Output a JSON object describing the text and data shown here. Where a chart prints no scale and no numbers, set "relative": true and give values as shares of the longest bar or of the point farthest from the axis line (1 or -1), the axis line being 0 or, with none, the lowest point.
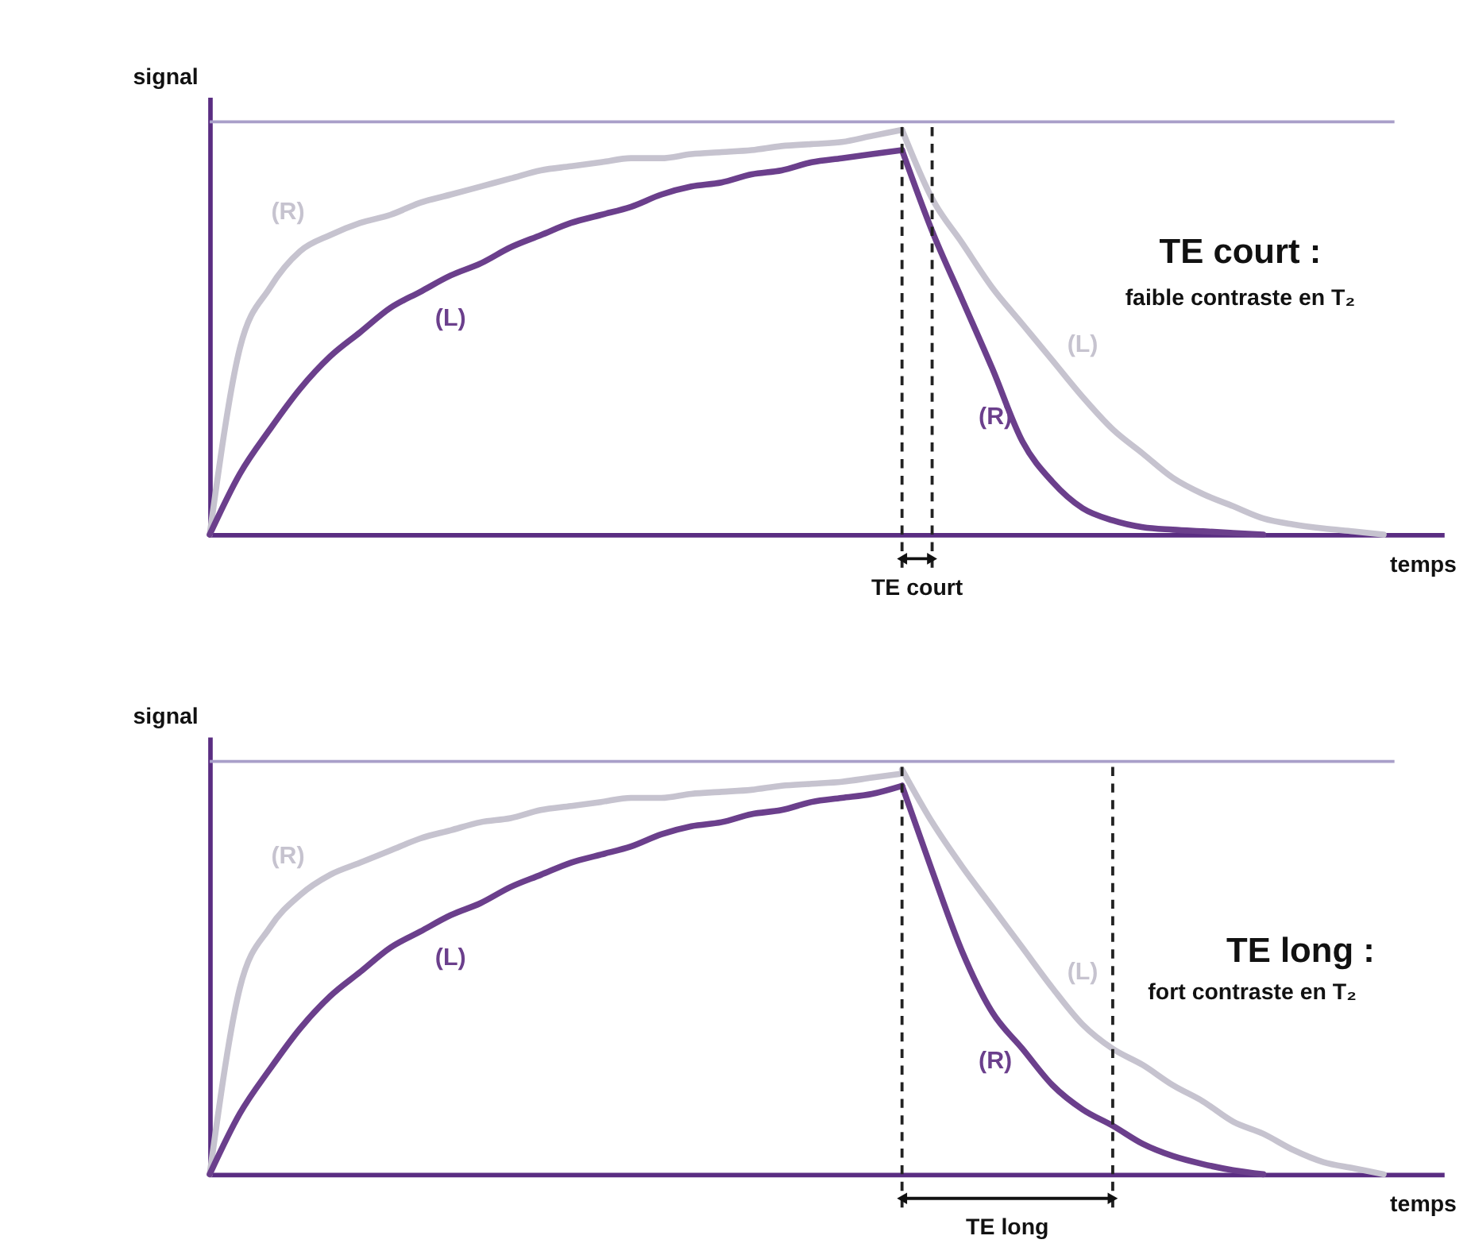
{
  "chart_data": [
    {
      "type": "line",
      "relative": true,
      "ylabel": "signal",
      "xlabel": "temps",
      "tick_labels": false,
      "grid": false,
      "legend": false,
      "marker": "none",
      "line_style": "solid",
      "categories": [
        null,
        null,
        null,
        null,
        null,
        null,
        null,
        null,
        null,
        null,
        null,
        null,
        null,
        null,
        null,
        null,
        null,
        null,
        null,
        null,
        null,
        null,
        null,
        null,
        null,
        null,
        null,
        null,
        null,
        null,
        null,
        null,
        null,
        null,
        null,
        null,
        null,
        null,
        null,
        null,
        null
      ],
      "series": [
        {
          "name": "(R)",
          "color": "#c6c3cf",
          "values": [
            0,
            0.46,
            0.61,
            0.7,
            0.74,
            0.77,
            0.79,
            0.82,
            0.84,
            0.86,
            0.88,
            0.9,
            0.91,
            0.92,
            0.93,
            0.93,
            0.94,
            0.945,
            0.95,
            0.96,
            0.965,
            0.97,
            0.985,
            1.0,
            null,
            null,
            null,
            null,
            null,
            null,
            null,
            null,
            null,
            null,
            null,
            null,
            null,
            null,
            null,
            null,
            null
          ]
        },
        {
          "name": "(L)",
          "color": "#6b3f8c",
          "values": [
            0,
            0.15,
            0.26,
            0.36,
            0.44,
            0.5,
            0.56,
            0.6,
            0.64,
            0.67,
            0.71,
            0.74,
            0.77,
            0.79,
            0.81,
            0.84,
            0.86,
            0.87,
            0.89,
            0.9,
            0.92,
            0.93,
            0.94,
            0.95,
            null,
            null,
            null,
            null,
            null,
            null,
            null,
            null,
            null,
            null,
            null,
            null,
            null,
            null,
            null,
            null,
            null
          ]
        },
        {
          "name": "(R)",
          "color": "#6b3f8c",
          "values": [
            null,
            null,
            null,
            null,
            null,
            null,
            null,
            null,
            null,
            null,
            null,
            null,
            null,
            null,
            null,
            null,
            null,
            null,
            null,
            null,
            null,
            null,
            null,
            0.95,
            0.75,
            0.58,
            0.41,
            0.23,
            0.13,
            0.065,
            0.035,
            0.018,
            0.012,
            0.008,
            0.004,
            0,
            null,
            null,
            null,
            null,
            null
          ]
        },
        {
          "name": "(L)",
          "color": "#c6c3cf",
          "values": [
            null,
            null,
            null,
            null,
            null,
            null,
            null,
            null,
            null,
            null,
            null,
            null,
            null,
            null,
            null,
            null,
            null,
            null,
            null,
            null,
            null,
            null,
            null,
            1.0,
            0.83,
            0.72,
            0.61,
            0.52,
            0.43,
            0.34,
            0.26,
            0.2,
            0.14,
            0.1,
            0.07,
            0.04,
            0.025,
            0.015,
            0.008,
            0,
            null
          ]
        }
      ],
      "ref_lines": [
        {
          "axis": "y",
          "value": 1.02,
          "color": "#a99fc9",
          "line_style": "solid"
        }
      ],
      "annotations": [
        "TE court :",
        "faible contraste en T₂",
        "TE court"
      ]
    },
    {
      "type": "line",
      "relative": true,
      "ylabel": "signal",
      "xlabel": "temps",
      "tick_labels": false,
      "grid": false,
      "legend": false,
      "marker": "none",
      "line_style": "solid",
      "categories": [
        null,
        null,
        null,
        null,
        null,
        null,
        null,
        null,
        null,
        null,
        null,
        null,
        null,
        null,
        null,
        null,
        null,
        null,
        null,
        null,
        null,
        null,
        null,
        null,
        null,
        null,
        null,
        null,
        null,
        null,
        null,
        null,
        null,
        null,
        null,
        null,
        null,
        null,
        null,
        null,
        null
      ],
      "series": [
        {
          "name": "(R)",
          "color": "#c6c3cf",
          "values": [
            0,
            0.46,
            0.61,
            0.69,
            0.74,
            0.77,
            0.8,
            0.83,
            0.85,
            0.87,
            0.88,
            0.9,
            0.91,
            0.92,
            0.93,
            0.93,
            0.94,
            0.945,
            0.95,
            0.96,
            0.965,
            0.97,
            0.98,
            0.99,
            null,
            null,
            null,
            null,
            null,
            null,
            null,
            null,
            null,
            null,
            null,
            null,
            null,
            null,
            null,
            null,
            null
          ]
        },
        {
          "name": "(L)",
          "color": "#6b3f8c",
          "values": [
            0,
            0.15,
            0.26,
            0.36,
            0.44,
            0.5,
            0.56,
            0.6,
            0.64,
            0.67,
            0.71,
            0.74,
            0.77,
            0.79,
            0.81,
            0.84,
            0.86,
            0.87,
            0.89,
            0.9,
            0.92,
            0.93,
            0.94,
            0.96,
            null,
            null,
            null,
            null,
            null,
            null,
            null,
            null,
            null,
            null,
            null,
            null,
            null,
            null,
            null,
            null,
            null
          ]
        },
        {
          "name": "(R)",
          "color": "#6b3f8c",
          "values": [
            null,
            null,
            null,
            null,
            null,
            null,
            null,
            null,
            null,
            null,
            null,
            null,
            null,
            null,
            null,
            null,
            null,
            null,
            null,
            null,
            null,
            null,
            null,
            0.96,
            0.75,
            0.55,
            0.4,
            0.31,
            0.22,
            0.16,
            0.12,
            0.075,
            0.045,
            0.025,
            0.01,
            0,
            null,
            null,
            null,
            null,
            null
          ]
        },
        {
          "name": "(L)",
          "color": "#c6c3cf",
          "values": [
            null,
            null,
            null,
            null,
            null,
            null,
            null,
            null,
            null,
            null,
            null,
            null,
            null,
            null,
            null,
            null,
            null,
            null,
            null,
            null,
            null,
            null,
            null,
            1.0,
            0.87,
            0.76,
            0.66,
            0.56,
            0.46,
            0.37,
            0.31,
            0.27,
            0.22,
            0.18,
            0.13,
            0.1,
            0.06,
            0.03,
            0.015,
            0,
            null
          ]
        }
      ],
      "ref_lines": [
        {
          "axis": "y",
          "value": 1.02,
          "color": "#a99fc9",
          "line_style": "solid"
        }
      ],
      "annotations": [
        "TE long :",
        "fort contraste en T₂",
        "TE long"
      ]
    }
  ]
}
